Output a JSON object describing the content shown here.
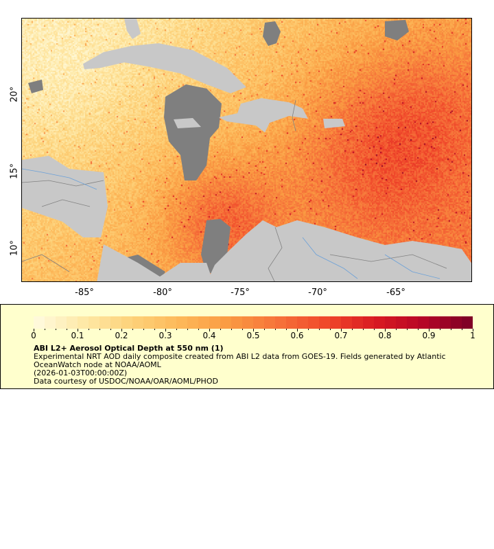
{
  "map": {
    "lat_labels": [
      {
        "value": 20,
        "label": "20°"
      },
      {
        "value": 15,
        "label": "15°"
      },
      {
        "value": 10,
        "label": "10°"
      }
    ],
    "lon_labels": [
      {
        "value": -85,
        "label": "-85°"
      },
      {
        "value": -80,
        "label": "-80°"
      },
      {
        "value": -75,
        "label": "-75°"
      },
      {
        "value": -70,
        "label": "-70°"
      },
      {
        "value": -65,
        "label": "-65°"
      }
    ],
    "colors": {
      "land": "#c8c8c8",
      "no_data": "#7f7f7f",
      "rivers": "#6aa0d8",
      "borders": "#808080"
    }
  },
  "legend": {
    "colorbar": {
      "min": 0,
      "max": 1,
      "steps": 40,
      "colormap": [
        "#fffbe0",
        "#fee9a8",
        "#fdd27a",
        "#fdb859",
        "#fa9a42",
        "#f6733a",
        "#f0472a",
        "#d91b22",
        "#b50526",
        "#7a0026"
      ],
      "tick_labels": [
        "0",
        "0.1",
        "0.2",
        "0.3",
        "0.4",
        "0.5",
        "0.6",
        "0.7",
        "0.8",
        "0.9",
        "1"
      ]
    },
    "title": "ABI L2+ Aerosol Optical Depth at 550 nm (1)",
    "lines": [
      "Experimental NRT AOD daily composite created from ABI L2 data from GOES-19. Fields generated by Atlantic",
      "OceanWatch node at NOAA/AOML",
      "(2026-01-03T00:00:00Z)",
      "Data courtesy of USDOC/NOAA/OAR/AOML/PHOD"
    ]
  }
}
